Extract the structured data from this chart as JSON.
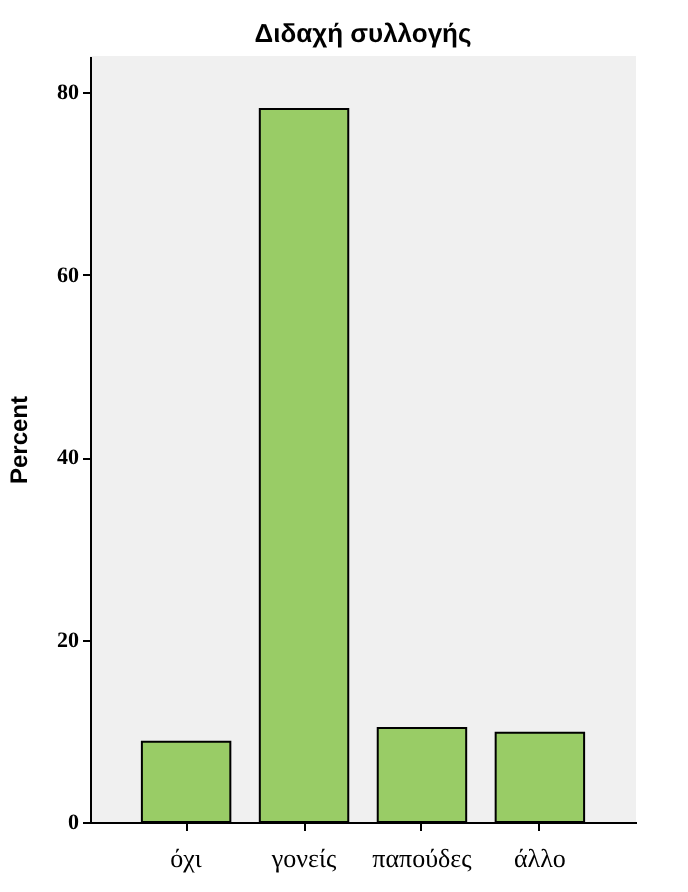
{
  "chart_data": {
    "type": "bar",
    "title": "Διδαχή συλλογής",
    "ylabel": "Percent",
    "categories": [
      "όχι",
      "γονείς",
      "παπούδες",
      "άλλο"
    ],
    "values": [
      8.8,
      78.2,
      10.3,
      9.8
    ],
    "color": "#99cc66",
    "ylim": [
      0,
      84
    ],
    "yticks": [
      0,
      20,
      40,
      60,
      80
    ],
    "grid": false
  }
}
